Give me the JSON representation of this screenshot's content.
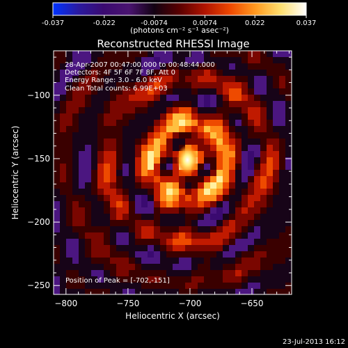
{
  "colorbar": {
    "ticks": [
      "-0.037",
      "-0.022",
      "-0.0074",
      "0.0074",
      "0.022",
      "0.037"
    ],
    "unit_label": "(photons cm⁻² s⁻¹ asec⁻²)",
    "stops": [
      "#0033ff",
      "#2a1aa0",
      "#3a0a70",
      "#4a1470",
      "#120212",
      "#5a0000",
      "#b01400",
      "#ee4800",
      "#ff9a20",
      "#ffe070",
      "#ffffff"
    ],
    "range": [
      -0.037,
      0.037
    ]
  },
  "info_lines": [
    "28-Apr-2007 00:47:00.000 to 00:48:44.000",
    "Detectors: 4F 5F 6F 7F 8F, Att 0",
    "Energy Range: 3.0 - 6.0 keV",
    "Clean     Total counts: 6.99E+03"
  ],
  "peak_label": "Position of Peak = [-702,-151]",
  "footer_timestamp": "23-Jul-2013 16:12",
  "chart_data": {
    "type": "heatmap",
    "title": "Reconstructed RHESSI Image",
    "xlabel": "Heliocentric X (arcsec)",
    "ylabel": "Heliocentric Y (arcsec)",
    "xlim": [
      -810,
      -618
    ],
    "ylim": [
      -257,
      -65
    ],
    "xticks": [
      -800,
      -750,
      -700,
      -650
    ],
    "yticks": [
      -100,
      -150,
      -200,
      -250
    ],
    "peak": {
      "x": -702,
      "y": -151
    },
    "grid": false
  }
}
